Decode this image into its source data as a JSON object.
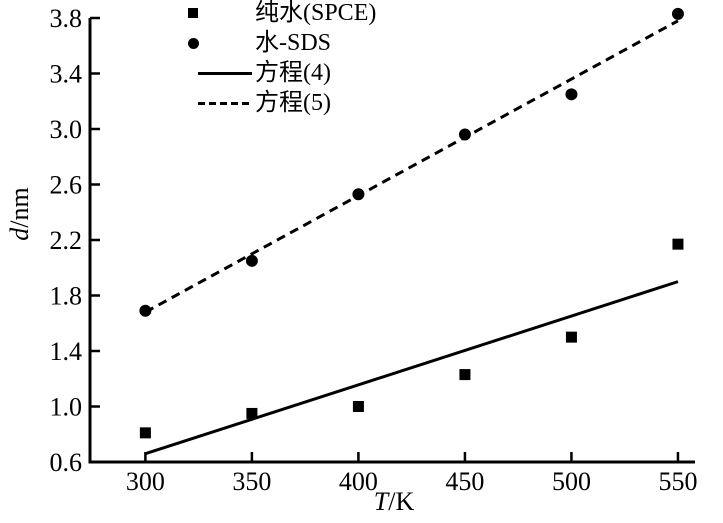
{
  "chart_data": {
    "type": "scatter",
    "title": "",
    "xlabel": {
      "italic": "T",
      "unit": "/K"
    },
    "ylabel": {
      "italic": "d",
      "unit": "/nm"
    },
    "xlim": [
      274,
      558
    ],
    "ylim": [
      0.6,
      3.8
    ],
    "xticks": [
      300,
      350,
      400,
      450,
      500,
      550
    ],
    "yticks": [
      0.6,
      1.0,
      1.4,
      1.8,
      2.2,
      2.6,
      3.0,
      3.4,
      3.8
    ],
    "grid": false,
    "legend_position": "top-left",
    "axis_color": "#000000",
    "background": "#ffffff",
    "series": [
      {
        "name": "纯水(SPCE)",
        "kind": "markers",
        "marker": "square",
        "x": [
          300,
          350,
          400,
          450,
          500,
          550
        ],
        "y": [
          0.81,
          0.95,
          1.0,
          1.23,
          1.5,
          2.17
        ]
      },
      {
        "name": "水-SDS",
        "kind": "markers",
        "marker": "circle",
        "x": [
          300,
          350,
          400,
          450,
          500,
          550
        ],
        "y": [
          1.69,
          2.05,
          2.53,
          2.96,
          3.25,
          3.83
        ]
      },
      {
        "name": "方程(4)",
        "kind": "line",
        "style": "solid",
        "x": [
          300,
          550
        ],
        "y": [
          0.66,
          1.9
        ]
      },
      {
        "name": "方程(5)",
        "kind": "line",
        "style": "dashed",
        "x": [
          300,
          550
        ],
        "y": [
          1.68,
          3.78
        ]
      }
    ]
  }
}
